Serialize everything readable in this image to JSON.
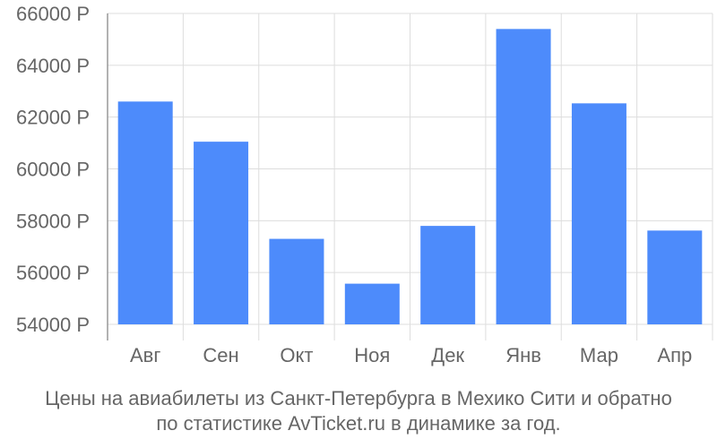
{
  "chart_data": {
    "type": "bar",
    "categories": [
      "Авг",
      "Сен",
      "Окт",
      "Ноя",
      "Дек",
      "Янв",
      "Мар",
      "Апр"
    ],
    "values": [
      62600,
      61050,
      57300,
      55570,
      57800,
      65400,
      62530,
      57620
    ],
    "ylim": [
      54000,
      66000
    ],
    "yticks": [
      54000,
      56000,
      58000,
      60000,
      62000,
      64000,
      66000
    ],
    "ytick_suffix": " Р",
    "grid": true,
    "bar_color": "#4d8bfb",
    "grid_color": "#dddddd",
    "axis_color": "#999999",
    "label_color": "#666666"
  },
  "caption": {
    "line1": "Цены на авиабилеты из Санкт-Петербурга в Мехико Сити и обратно",
    "line2": "по статистике AvTicket.ru в динамике за год."
  }
}
